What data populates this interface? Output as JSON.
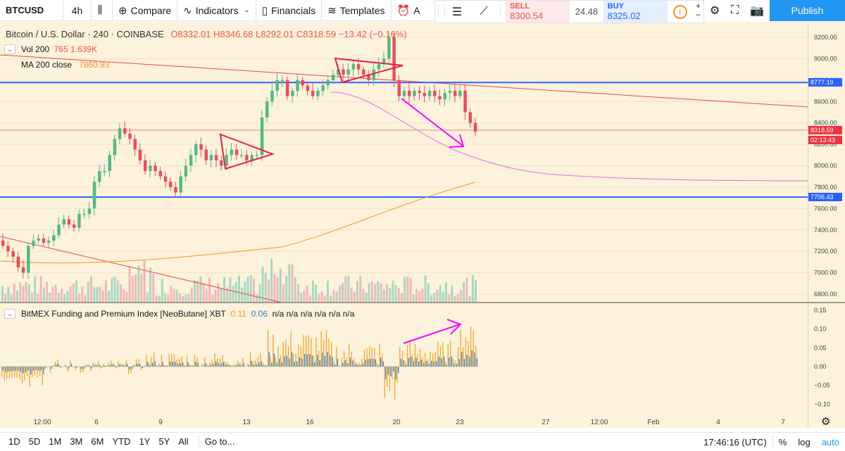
{
  "toolbar": {
    "symbol": "BTCUSD",
    "interval": "4h",
    "candle_icon": "candles-icon",
    "compare": "Compare",
    "indicators": "Indicators",
    "financials": "Financials",
    "templates": "Templates",
    "alert_label": "A"
  },
  "trade": {
    "sell_label": "SELL",
    "sell_price": "8300.54",
    "spread": "24.48",
    "buy_label": "BUY",
    "buy_price": "8325.02"
  },
  "publish": "Publish",
  "legend": {
    "title": "Bitcoin / U.S. Dollar · 240 · COINBASE",
    "ohlc": "O8332.01  H8346.68  L8292.01  C8318.59  −13.42 (−0.16%)",
    "vol_label": "Vol 200",
    "vol_values": "765  1.639K",
    "ma_label": "MA 200 close",
    "ma_value": "7860.93",
    "funding_label": "BitMEX Funding and Premium Index [NeoButane] XBT",
    "funding_v1": "0.11",
    "funding_v2": "0.06",
    "funding_na": "n/a n/a n/a n/a n/a n/a"
  },
  "price_axis": [
    "9200.00",
    "9000.00",
    "8800.00",
    "8600.00",
    "8400.00",
    "8200.00",
    "8000.00",
    "7800.00",
    "7600.00",
    "7400.00",
    "7200.00",
    "7000.00",
    "6800.00"
  ],
  "indicator_axis": [
    "0.15",
    "0.10",
    "0.05",
    "0.00",
    "−0.05",
    "−0.10"
  ],
  "price_tags": {
    "upper_line": "8777.19",
    "last_price": "8318.59",
    "countdown": "02:13:43",
    "lower_line": "7706.43"
  },
  "time_axis": [
    "12:00",
    "6",
    "9",
    "13",
    "16",
    "20",
    "23",
    "27",
    "12:00",
    "Feb",
    "4",
    "7"
  ],
  "colors": {
    "up": "#53b987",
    "down": "#eb4d5c",
    "hline": "#2962ff",
    "ma": "#f7931a",
    "pink": "#ff00ff"
  },
  "bottom": {
    "ranges": [
      "1D",
      "5D",
      "1M",
      "3M",
      "6M",
      "YTD",
      "1Y",
      "5Y",
      "All"
    ],
    "goto": "Go to...",
    "time": "17:46:16 (UTC)",
    "percent": "%",
    "log": "log",
    "auto": "auto"
  }
}
